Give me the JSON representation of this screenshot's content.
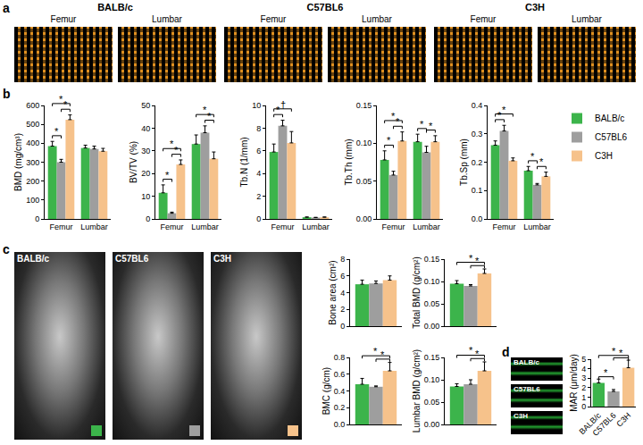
{
  "panel_labels": [
    "a",
    "b",
    "c",
    "d"
  ],
  "images": {
    "a": [
      {
        "title": "BALB/c",
        "views": [
          "Femur",
          "Lumbar"
        ]
      },
      {
        "title": "C57BL6",
        "views": [
          "Femur",
          "Lumbar"
        ]
      },
      {
        "title": "C3H",
        "views": [
          "Femur",
          "Lumbar"
        ]
      }
    ],
    "c": [
      "BALB/c",
      "C57BL6",
      "C3H"
    ],
    "d": [
      "BALB/c",
      "C57BL6",
      "C3H"
    ]
  },
  "chart_data": [
    {
      "type": "bar",
      "ylabel": "BMD (mg/cm³)",
      "categories": [
        "Femur",
        "Lumbar"
      ],
      "series": [
        {
          "name": "BALB/c",
          "color": "#3cb44b",
          "values": [
            385,
            375
          ],
          "errors": [
            25,
            15
          ]
        },
        {
          "name": "C57BL6",
          "color": "#9e9e9e",
          "values": [
            300,
            370
          ],
          "errors": [
            15,
            15
          ]
        },
        {
          "name": "C3H",
          "color": "#f6c28b",
          "values": [
            525,
            358
          ],
          "errors": [
            25,
            15
          ]
        }
      ],
      "ylim": [
        0,
        600
      ],
      "yticks": [
        0,
        100,
        200,
        300,
        400,
        500,
        600
      ],
      "significance": [
        {
          "category": "Femur",
          "between": [
            "BALB/c",
            "C57BL6"
          ],
          "label": "*"
        },
        {
          "category": "Femur",
          "between": [
            "C57BL6",
            "C3H"
          ],
          "label": "*"
        },
        {
          "category": "Femur",
          "between": [
            "BALB/c",
            "C3H"
          ],
          "label": "*"
        }
      ]
    },
    {
      "type": "bar",
      "ylabel": "BV/TV (%)",
      "categories": [
        "Femur",
        "Lumbar"
      ],
      "series": [
        {
          "name": "BALB/c",
          "color": "#3cb44b",
          "values": [
            11.5,
            33
          ],
          "errors": [
            3.5,
            4
          ]
        },
        {
          "name": "C57BL6",
          "color": "#9e9e9e",
          "values": [
            2.5,
            38
          ],
          "errors": [
            0.5,
            3
          ]
        },
        {
          "name": "C3H",
          "color": "#f6c28b",
          "values": [
            24,
            26.5
          ],
          "errors": [
            2,
            3
          ]
        }
      ],
      "ylim": [
        0,
        50
      ],
      "yticks": [
        0,
        10,
        20,
        30,
        40,
        50
      ],
      "significance": [
        {
          "category": "Femur",
          "between": [
            "BALB/c",
            "C57BL6"
          ],
          "label": "*"
        },
        {
          "category": "Femur",
          "between": [
            "C57BL6",
            "C3H"
          ],
          "label": "*"
        },
        {
          "category": "Femur",
          "between": [
            "BALB/c",
            "C3H"
          ],
          "label": "*"
        },
        {
          "category": "Lumbar",
          "between": [
            "C57BL6",
            "C3H"
          ],
          "label": "*"
        },
        {
          "category": "Lumbar",
          "between": [
            "BALB/c",
            "C3H"
          ],
          "label": "*"
        }
      ]
    },
    {
      "type": "bar",
      "ylabel": "Tb.N (1/mm)",
      "categories": [
        "Femur",
        "Lumbar"
      ],
      "series": [
        {
          "name": "BALB/c",
          "color": "#3cb44b",
          "values": [
            5.9,
            0.15
          ],
          "errors": [
            0.7,
            0.02
          ]
        },
        {
          "name": "C57BL6",
          "color": "#9e9e9e",
          "values": [
            8.2,
            0.12
          ],
          "errors": [
            0.5,
            0.02
          ]
        },
        {
          "name": "C3H",
          "color": "#f6c28b",
          "values": [
            6.7,
            0.15
          ],
          "errors": [
            1.0,
            0.02
          ]
        }
      ],
      "ylim": [
        0,
        10
      ],
      "yticks": [
        0,
        2,
        4,
        6,
        8,
        10
      ],
      "significance": [
        {
          "category": "Femur",
          "between": [
            "BALB/c",
            "C57BL6"
          ],
          "label": "*"
        },
        {
          "category": "Femur",
          "between": [
            "BALB/c",
            "C3H"
          ],
          "label": "†"
        }
      ]
    },
    {
      "type": "bar",
      "ylabel": "Tb.Th (mm)",
      "categories": [
        "Femur",
        "Lumbar"
      ],
      "series": [
        {
          "name": "BALB/c",
          "color": "#3cb44b",
          "values": [
            0.078,
            0.102
          ],
          "errors": [
            0.012,
            0.01
          ]
        },
        {
          "name": "C57BL6",
          "color": "#9e9e9e",
          "values": [
            0.058,
            0.088
          ],
          "errors": [
            0.005,
            0.008
          ]
        },
        {
          "name": "C3H",
          "color": "#f6c28b",
          "values": [
            0.103,
            0.102
          ],
          "errors": [
            0.012,
            0.008
          ]
        }
      ],
      "ylim": [
        0,
        0.15
      ],
      "yticks": [
        {
          "value": 0,
          "label": "0.00"
        },
        0.05,
        {
          "value": 0.1,
          "label": "0.10"
        },
        0.15
      ],
      "significance": [
        {
          "category": "Femur",
          "between": [
            "BALB/c",
            "C57BL6"
          ],
          "label": "*"
        },
        {
          "category": "Femur",
          "between": [
            "C57BL6",
            "C3H"
          ],
          "label": "*"
        },
        {
          "category": "Femur",
          "between": [
            "BALB/c",
            "C3H"
          ],
          "label": "*"
        },
        {
          "category": "Lumbar",
          "between": [
            "BALB/c",
            "C57BL6"
          ],
          "label": "*"
        },
        {
          "category": "Lumbar",
          "between": [
            "C57BL6",
            "C3H"
          ],
          "label": "*"
        }
      ]
    },
    {
      "type": "bar",
      "ylabel": "Tb.Sp (mm)",
      "categories": [
        "Femur",
        "Lumbar"
      ],
      "legend": "right",
      "series": [
        {
          "name": "BALB/c",
          "color": "#3cb44b",
          "values": [
            0.26,
            0.17
          ],
          "errors": [
            0.015,
            0.015
          ]
        },
        {
          "name": "C57BL6",
          "color": "#9e9e9e",
          "values": [
            0.31,
            0.12
          ],
          "errors": [
            0.02,
            0.005
          ]
        },
        {
          "name": "C3H",
          "color": "#f6c28b",
          "values": [
            0.205,
            0.15
          ],
          "errors": [
            0.01,
            0.015
          ]
        }
      ],
      "ylim": [
        0,
        0.4
      ],
      "yticks": [
        {
          "value": 0,
          "label": "0.0"
        },
        0.1,
        0.2,
        0.3,
        0.4
      ],
      "significance": [
        {
          "category": "Femur",
          "between": [
            "BALB/c",
            "C57BL6"
          ],
          "label": "*"
        },
        {
          "category": "Femur",
          "between": [
            "BALB/c",
            "C3H"
          ],
          "label": "*"
        },
        {
          "category": "Lumbar",
          "between": [
            "BALB/c",
            "C57BL6"
          ],
          "label": "*"
        },
        {
          "category": "Lumbar",
          "between": [
            "C57BL6",
            "C3H"
          ],
          "label": "*"
        }
      ]
    },
    {
      "type": "bar",
      "ylabel": "Bone area (cm²)",
      "categories": [
        null
      ],
      "tick_labels": "y",
      "series": [
        {
          "name": "BALB/c",
          "color": "#3cb44b",
          "values": [
            5.0
          ],
          "errors": [
            0.5
          ]
        },
        {
          "name": "C57BL6",
          "color": "#9e9e9e",
          "values": [
            5.1
          ],
          "errors": [
            0.3
          ]
        },
        {
          "name": "C3H",
          "color": "#f6c28b",
          "values": [
            5.5
          ],
          "errors": [
            0.5
          ]
        }
      ],
      "ylim": [
        0,
        8
      ],
      "yticks": [
        0,
        2,
        4,
        6,
        8
      ]
    },
    {
      "type": "bar",
      "ylabel": "Total BMD (g/cm²)",
      "categories": [
        null
      ],
      "tick_labels": "y",
      "series": [
        {
          "name": "BALB/c",
          "color": "#3cb44b",
          "values": [
            0.095
          ],
          "errors": [
            0.007
          ]
        },
        {
          "name": "C57BL6",
          "color": "#9e9e9e",
          "values": [
            0.09
          ],
          "errors": [
            0.003
          ]
        },
        {
          "name": "C3H",
          "color": "#f6c28b",
          "values": [
            0.118
          ],
          "errors": [
            0.01
          ]
        }
      ],
      "ylim": [
        0,
        0.15
      ],
      "yticks": [
        {
          "value": 0,
          "label": "0.00"
        },
        0.05,
        {
          "value": 0.1,
          "label": "0.10"
        },
        0.15
      ],
      "significance": [
        {
          "between": [
            "C57BL6",
            "C3H"
          ],
          "label": "*"
        },
        {
          "between": [
            "BALB/c",
            "C3H"
          ],
          "label": "*"
        }
      ]
    },
    {
      "type": "bar",
      "ylabel": "BMC (g/cm)",
      "categories": [
        null
      ],
      "tick_labels": "y",
      "series": [
        {
          "name": "BALB/c",
          "color": "#3cb44b",
          "values": [
            0.48
          ],
          "errors": [
            0.07
          ]
        },
        {
          "name": "C57BL6",
          "color": "#9e9e9e",
          "values": [
            0.45
          ],
          "errors": [
            0.01
          ]
        },
        {
          "name": "C3H",
          "color": "#f6c28b",
          "values": [
            0.64
          ],
          "errors": [
            0.1
          ]
        }
      ],
      "ylim": [
        0,
        0.8
      ],
      "yticks": [
        {
          "value": 0,
          "label": "0.0"
        },
        0.2,
        0.4,
        0.6,
        0.8
      ],
      "significance": [
        {
          "between": [
            "C57BL6",
            "C3H"
          ],
          "label": "*"
        },
        {
          "between": [
            "BALB/c",
            "C3H"
          ],
          "label": "*"
        }
      ]
    },
    {
      "type": "bar",
      "ylabel": "Lumbar BMD (g/cm²)",
      "categories": [
        null
      ],
      "tick_labels": "y",
      "series": [
        {
          "name": "BALB/c",
          "color": "#3cb44b",
          "values": [
            0.085
          ],
          "errors": [
            0.006
          ]
        },
        {
          "name": "C57BL6",
          "color": "#9e9e9e",
          "values": [
            0.09
          ],
          "errors": [
            0.01
          ]
        },
        {
          "name": "C3H",
          "color": "#f6c28b",
          "values": [
            0.12
          ],
          "errors": [
            0.02
          ]
        }
      ],
      "ylim": [
        0,
        0.15
      ],
      "yticks": [
        {
          "value": 0,
          "label": "0.00"
        },
        0.05,
        {
          "value": 0.1,
          "label": "0.10"
        },
        0.15
      ],
      "significance": [
        {
          "between": [
            "C57BL6",
            "C3H"
          ],
          "label": "*"
        },
        {
          "between": [
            "BALB/c",
            "C3H"
          ],
          "label": "*"
        }
      ]
    },
    {
      "type": "bar",
      "ylabel": "MAR (μm/day)",
      "categories": [
        "BALB/c",
        "C57BL6",
        "C3H"
      ],
      "values": [
        2.5,
        1.6,
        4.1
      ],
      "errors": [
        0.4,
        0.2,
        0.8
      ],
      "colors": [
        "#3cb44b",
        "#9e9e9e",
        "#f6c28b"
      ],
      "ylim": [
        0,
        5
      ],
      "yticks": [
        0,
        1,
        2,
        3,
        4,
        5
      ],
      "significance": [
        {
          "between": [
            "BALB/c",
            "C57BL6"
          ],
          "label": "*"
        },
        {
          "between": [
            "C57BL6",
            "C3H"
          ],
          "label": "*"
        },
        {
          "between": [
            "BALB/c",
            "C3H"
          ],
          "label": "*"
        }
      ]
    }
  ]
}
